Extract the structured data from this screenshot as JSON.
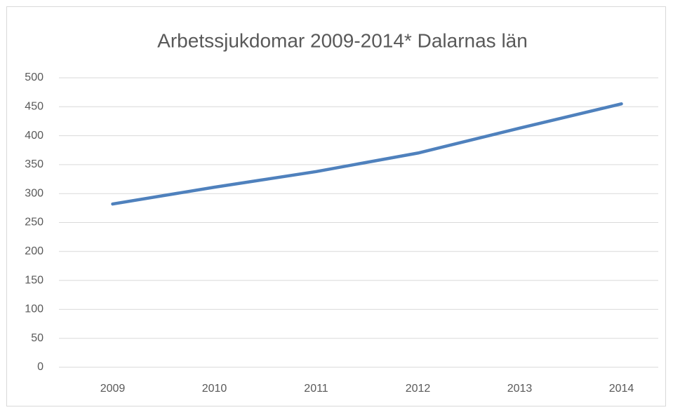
{
  "chart_data": {
    "type": "line",
    "title": "Arbetssjukdomar 2009-2014* Dalarnas län",
    "categories": [
      "2009",
      "2010",
      "2011",
      "2012",
      "2013",
      "2014"
    ],
    "series": [
      {
        "name": "Arbetssjukdomar",
        "color": "#4f81bd",
        "values": [
          282,
          311,
          338,
          370,
          413,
          455
        ]
      }
    ],
    "ylim": [
      0,
      500
    ],
    "yticks": [
      0,
      50,
      100,
      150,
      200,
      250,
      300,
      350,
      400,
      450,
      500
    ],
    "grid": true
  }
}
